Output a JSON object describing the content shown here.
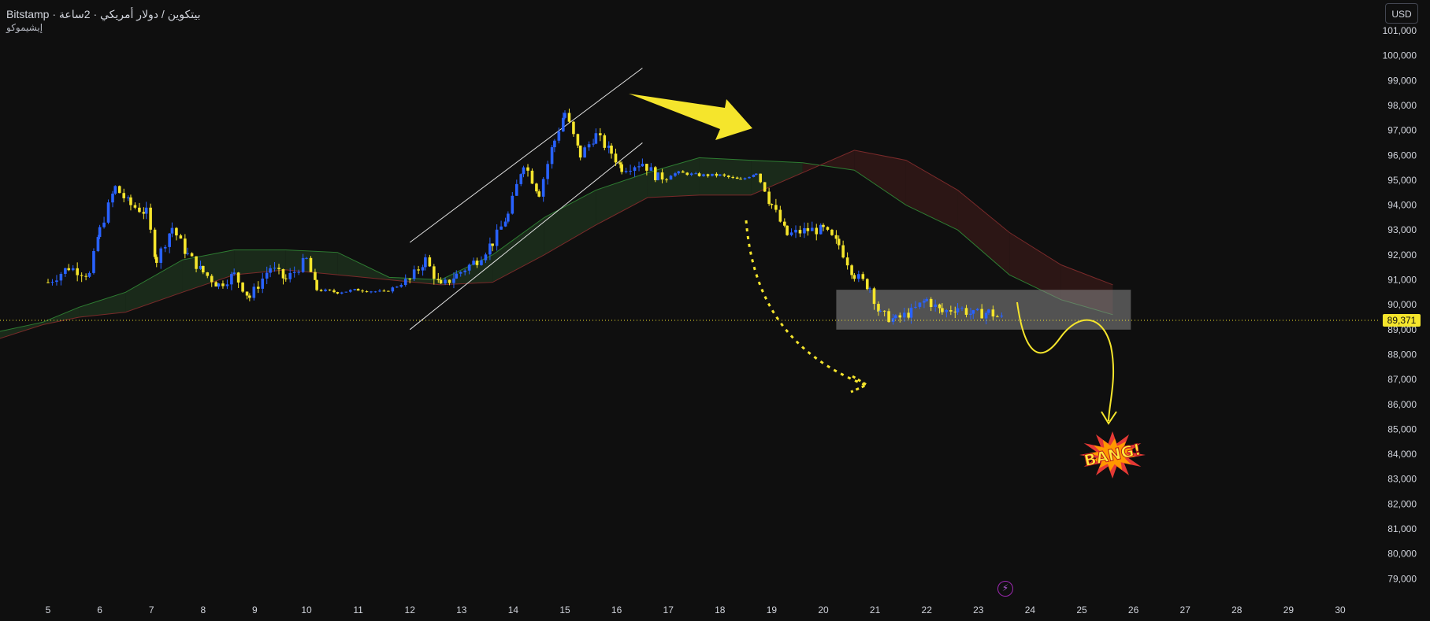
{
  "header": {
    "title": "Bitstamp · بيتكوين / دولار أمريكي · 2ساعة",
    "subtitle": "إيشيموكو"
  },
  "currency_button": {
    "label": "USD"
  },
  "current_price": {
    "label": "89,371",
    "value": 89371,
    "color": "#f5e52c"
  },
  "colors": {
    "background": "#0f0f0f",
    "up_candle": "#2962ff",
    "down_candle": "#f5e52c",
    "annotation_yellow": "#f5e52c",
    "cloud_green": "#1b2c1b",
    "cloud_red": "#2e1716",
    "zone_gray": "#8a8a8a"
  },
  "icons": {
    "bolt": "lightning-bolt-icon"
  },
  "chart_data": {
    "type": "candlestick",
    "y_ticks": [
      "101,000",
      "100,000",
      "99,000",
      "98,000",
      "97,000",
      "96,000",
      "95,000",
      "94,000",
      "93,000",
      "92,000",
      "91,000",
      "90,000",
      "89,000",
      "88,000",
      "87,000",
      "86,000",
      "85,000",
      "84,000",
      "83,000",
      "82,000",
      "81,000",
      "80,000",
      "79,000"
    ],
    "x_ticks": [
      "5",
      "6",
      "7",
      "8",
      "9",
      "10",
      "11",
      "12",
      "13",
      "14",
      "15",
      "16",
      "17",
      "18",
      "19",
      "20",
      "21",
      "22",
      "23",
      "24",
      "25",
      "26",
      "27",
      "28",
      "29",
      "30"
    ],
    "ylim": [
      78500,
      101500
    ],
    "price_path": [
      [
        5.0,
        90900
      ],
      [
        5.4,
        91500
      ],
      [
        5.8,
        91200
      ],
      [
        6.0,
        93000
      ],
      [
        6.3,
        94700
      ],
      [
        6.6,
        94000
      ],
      [
        6.9,
        93700
      ],
      [
        7.1,
        91800
      ],
      [
        7.4,
        93100
      ],
      [
        7.7,
        92000
      ],
      [
        8.0,
        91300
      ],
      [
        8.3,
        90800
      ],
      [
        8.6,
        91200
      ],
      [
        8.9,
        90300
      ],
      [
        9.3,
        91500
      ],
      [
        9.6,
        91000
      ],
      [
        10.0,
        91800
      ],
      [
        10.2,
        90600
      ],
      [
        10.6,
        90500
      ],
      [
        11.0,
        90600
      ],
      [
        11.5,
        90500
      ],
      [
        12.0,
        91000
      ],
      [
        12.3,
        91800
      ],
      [
        12.6,
        90700
      ],
      [
        12.9,
        91200
      ],
      [
        13.3,
        91800
      ],
      [
        13.6,
        92500
      ],
      [
        13.9,
        93600
      ],
      [
        14.2,
        95700
      ],
      [
        14.5,
        94500
      ],
      [
        14.8,
        96600
      ],
      [
        15.0,
        97700
      ],
      [
        15.3,
        96000
      ],
      [
        15.6,
        96800
      ],
      [
        15.9,
        96100
      ],
      [
        16.1,
        95500
      ],
      [
        16.5,
        95700
      ],
      [
        16.8,
        95100
      ],
      [
        17.2,
        95300
      ],
      [
        17.6,
        95200
      ],
      [
        18.0,
        95200
      ],
      [
        18.4,
        95000
      ],
      [
        18.7,
        95300
      ],
      [
        19.0,
        94000
      ],
      [
        19.3,
        92800
      ],
      [
        19.7,
        93000
      ],
      [
        20.0,
        93000
      ],
      [
        20.3,
        92400
      ],
      [
        20.6,
        91200
      ],
      [
        20.9,
        90700
      ],
      [
        21.1,
        89600
      ],
      [
        21.4,
        89400
      ],
      [
        21.7,
        89700
      ],
      [
        22.0,
        90200
      ],
      [
        22.3,
        89700
      ],
      [
        22.6,
        89900
      ],
      [
        22.9,
        89600
      ],
      [
        23.2,
        89700
      ],
      [
        23.5,
        89400
      ]
    ],
    "ichimoku_cloud": {
      "span_a": [
        [
          4.0,
          88900
        ],
        [
          4.9,
          89300
        ],
        [
          5.6,
          89900
        ],
        [
          6.5,
          90500
        ],
        [
          7.6,
          91800
        ],
        [
          8.6,
          92200
        ],
        [
          9.6,
          92200
        ],
        [
          10.6,
          92100
        ],
        [
          11.6,
          91100
        ],
        [
          12.6,
          91000
        ],
        [
          13.6,
          92000
        ],
        [
          14.6,
          93500
        ],
        [
          15.6,
          94600
        ],
        [
          16.6,
          95300
        ],
        [
          17.6,
          95900
        ],
        [
          18.6,
          95800
        ],
        [
          19.6,
          95700
        ],
        [
          20.6,
          95400
        ],
        [
          21.6,
          94000
        ],
        [
          22.6,
          93000
        ],
        [
          23.6,
          91200
        ],
        [
          24.6,
          90200
        ],
        [
          25.6,
          89600
        ]
      ],
      "span_b": [
        [
          4.0,
          88600
        ],
        [
          4.9,
          89200
        ],
        [
          5.6,
          89500
        ],
        [
          6.5,
          89700
        ],
        [
          7.6,
          90500
        ],
        [
          8.6,
          91200
        ],
        [
          9.6,
          91400
        ],
        [
          10.6,
          91200
        ],
        [
          11.6,
          91000
        ],
        [
          12.6,
          90800
        ],
        [
          13.6,
          90900
        ],
        [
          14.6,
          92000
        ],
        [
          15.6,
          93200
        ],
        [
          16.6,
          94300
        ],
        [
          17.6,
          94400
        ],
        [
          18.6,
          94400
        ],
        [
          19.6,
          95300
        ],
        [
          20.6,
          96200
        ],
        [
          21.6,
          95800
        ],
        [
          22.6,
          94600
        ],
        [
          23.6,
          92900
        ],
        [
          24.6,
          91600
        ],
        [
          25.6,
          90800
        ]
      ]
    }
  },
  "annotations": {
    "bang_label": "BANG!"
  }
}
